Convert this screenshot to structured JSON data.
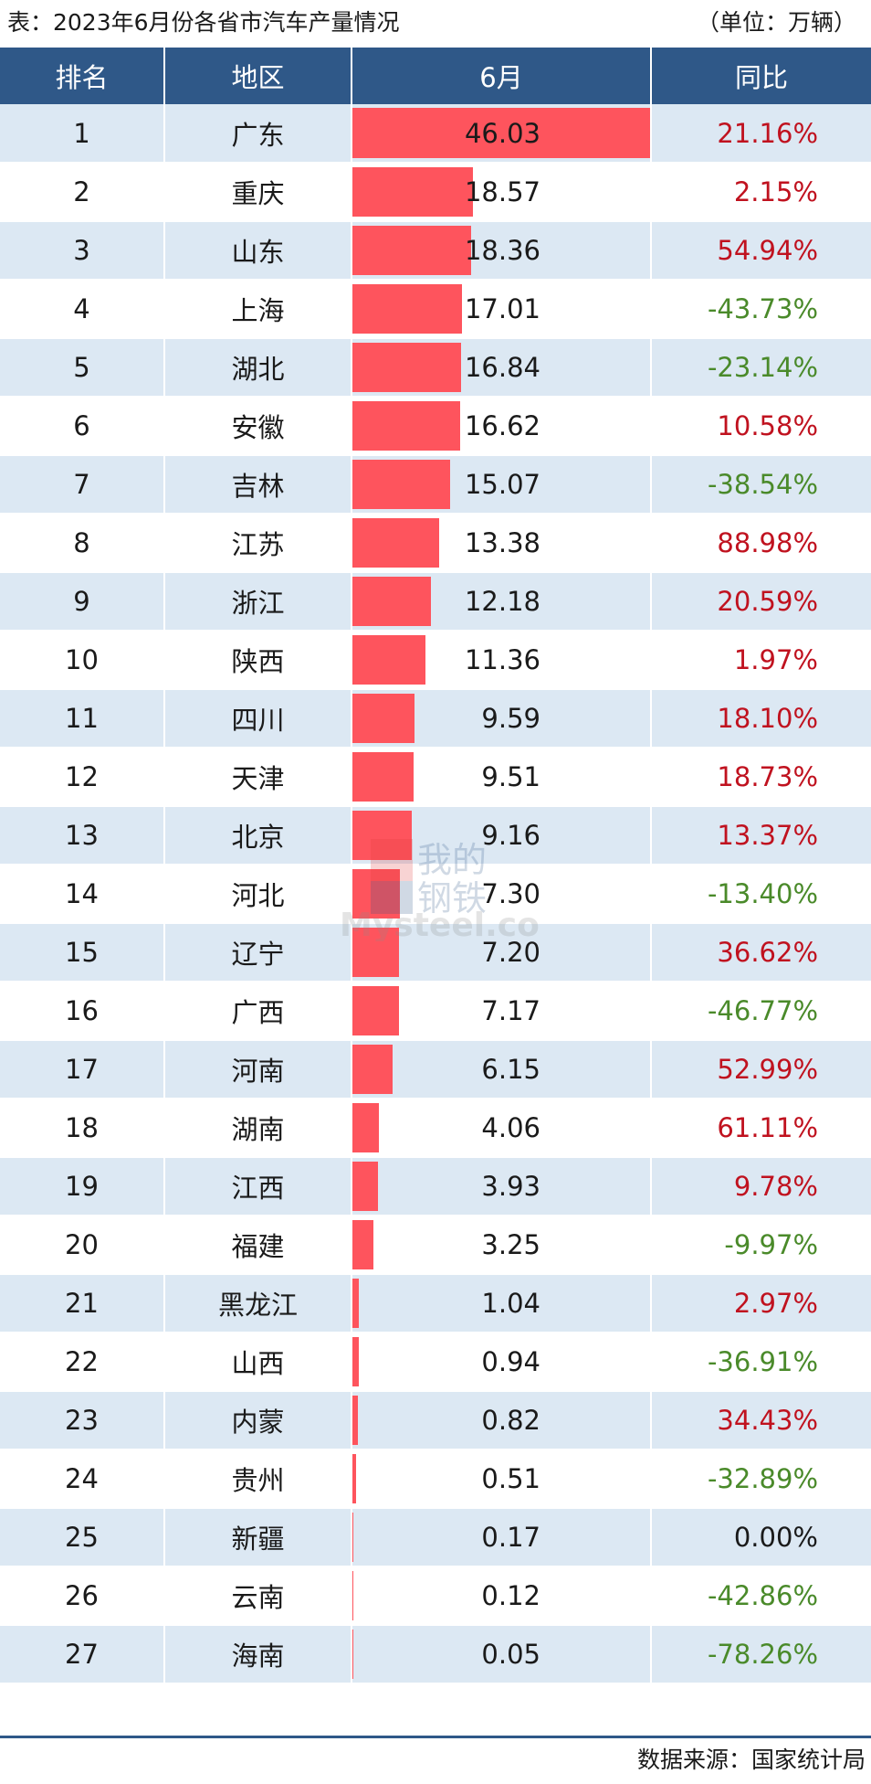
{
  "header": {
    "title": "表：2023年6月份各省市汽车产量情况",
    "unit": "（单位：万辆）"
  },
  "table": {
    "columns": [
      "排名",
      "地区",
      "6月",
      "同比"
    ]
  },
  "chart_data": {
    "type": "bar",
    "title": "表：2023年6月份各省市汽车产量情况",
    "unit": "（单位：万辆）",
    "rows": [
      {
        "rank": "1",
        "region": "广东",
        "value": 46.03,
        "value_text": "46.03",
        "yoy": "21.16%"
      },
      {
        "rank": "2",
        "region": "重庆",
        "value": 18.57,
        "value_text": "18.57",
        "yoy": "2.15%"
      },
      {
        "rank": "3",
        "region": "山东",
        "value": 18.36,
        "value_text": "18.36",
        "yoy": "54.94%"
      },
      {
        "rank": "4",
        "region": "上海",
        "value": 17.01,
        "value_text": "17.01",
        "yoy": "-43.73%"
      },
      {
        "rank": "5",
        "region": "湖北",
        "value": 16.84,
        "value_text": "16.84",
        "yoy": "-23.14%"
      },
      {
        "rank": "6",
        "region": "安徽",
        "value": 16.62,
        "value_text": "16.62",
        "yoy": "10.58%"
      },
      {
        "rank": "7",
        "region": "吉林",
        "value": 15.07,
        "value_text": "15.07",
        "yoy": "-38.54%"
      },
      {
        "rank": "8",
        "region": "江苏",
        "value": 13.38,
        "value_text": "13.38",
        "yoy": "88.98%"
      },
      {
        "rank": "9",
        "region": "浙江",
        "value": 12.18,
        "value_text": "12.18",
        "yoy": "20.59%"
      },
      {
        "rank": "10",
        "region": "陕西",
        "value": 11.36,
        "value_text": "11.36",
        "yoy": "1.97%"
      },
      {
        "rank": "11",
        "region": "四川",
        "value": 9.59,
        "value_text": "9.59",
        "yoy": "18.10%"
      },
      {
        "rank": "12",
        "region": "天津",
        "value": 9.51,
        "value_text": "9.51",
        "yoy": "18.73%"
      },
      {
        "rank": "13",
        "region": "北京",
        "value": 9.16,
        "value_text": "9.16",
        "yoy": "13.37%"
      },
      {
        "rank": "14",
        "region": "河北",
        "value": 7.3,
        "value_text": "7.30",
        "yoy": "-13.40%"
      },
      {
        "rank": "15",
        "region": "辽宁",
        "value": 7.2,
        "value_text": "7.20",
        "yoy": "36.62%"
      },
      {
        "rank": "16",
        "region": "广西",
        "value": 7.17,
        "value_text": "7.17",
        "yoy": "-46.77%"
      },
      {
        "rank": "17",
        "region": "河南",
        "value": 6.15,
        "value_text": "6.15",
        "yoy": "52.99%"
      },
      {
        "rank": "18",
        "region": "湖南",
        "value": 4.06,
        "value_text": "4.06",
        "yoy": "61.11%"
      },
      {
        "rank": "19",
        "region": "江西",
        "value": 3.93,
        "value_text": "3.93",
        "yoy": "9.78%"
      },
      {
        "rank": "20",
        "region": "福建",
        "value": 3.25,
        "value_text": "3.25",
        "yoy": "-9.97%"
      },
      {
        "rank": "21",
        "region": "黑龙江",
        "value": 1.04,
        "value_text": "1.04",
        "yoy": "2.97%"
      },
      {
        "rank": "22",
        "region": "山西",
        "value": 0.94,
        "value_text": "0.94",
        "yoy": "-36.91%"
      },
      {
        "rank": "23",
        "region": "内蒙",
        "value": 0.82,
        "value_text": "0.82",
        "yoy": "34.43%"
      },
      {
        "rank": "24",
        "region": "贵州",
        "value": 0.51,
        "value_text": "0.51",
        "yoy": "-32.89%"
      },
      {
        "rank": "25",
        "region": "新疆",
        "value": 0.17,
        "value_text": "0.17",
        "yoy": "0.00%"
      },
      {
        "rank": "26",
        "region": "云南",
        "value": 0.12,
        "value_text": "0.12",
        "yoy": "-42.86%"
      },
      {
        "rank": "27",
        "region": "海南",
        "value": 0.05,
        "value_text": "0.05",
        "yoy": "-78.26%"
      }
    ],
    "bar_color": "#fe545d",
    "positive_color": "#c0121f",
    "negative_color": "#4a8a2a",
    "header_color": "#2f5888",
    "stripe_color": "#dce8f3"
  },
  "watermark": {
    "line1": "我的",
    "line2": "钢铁",
    "line3": "Mysteel.com"
  },
  "footer": {
    "source": "数据来源：国家统计局"
  }
}
